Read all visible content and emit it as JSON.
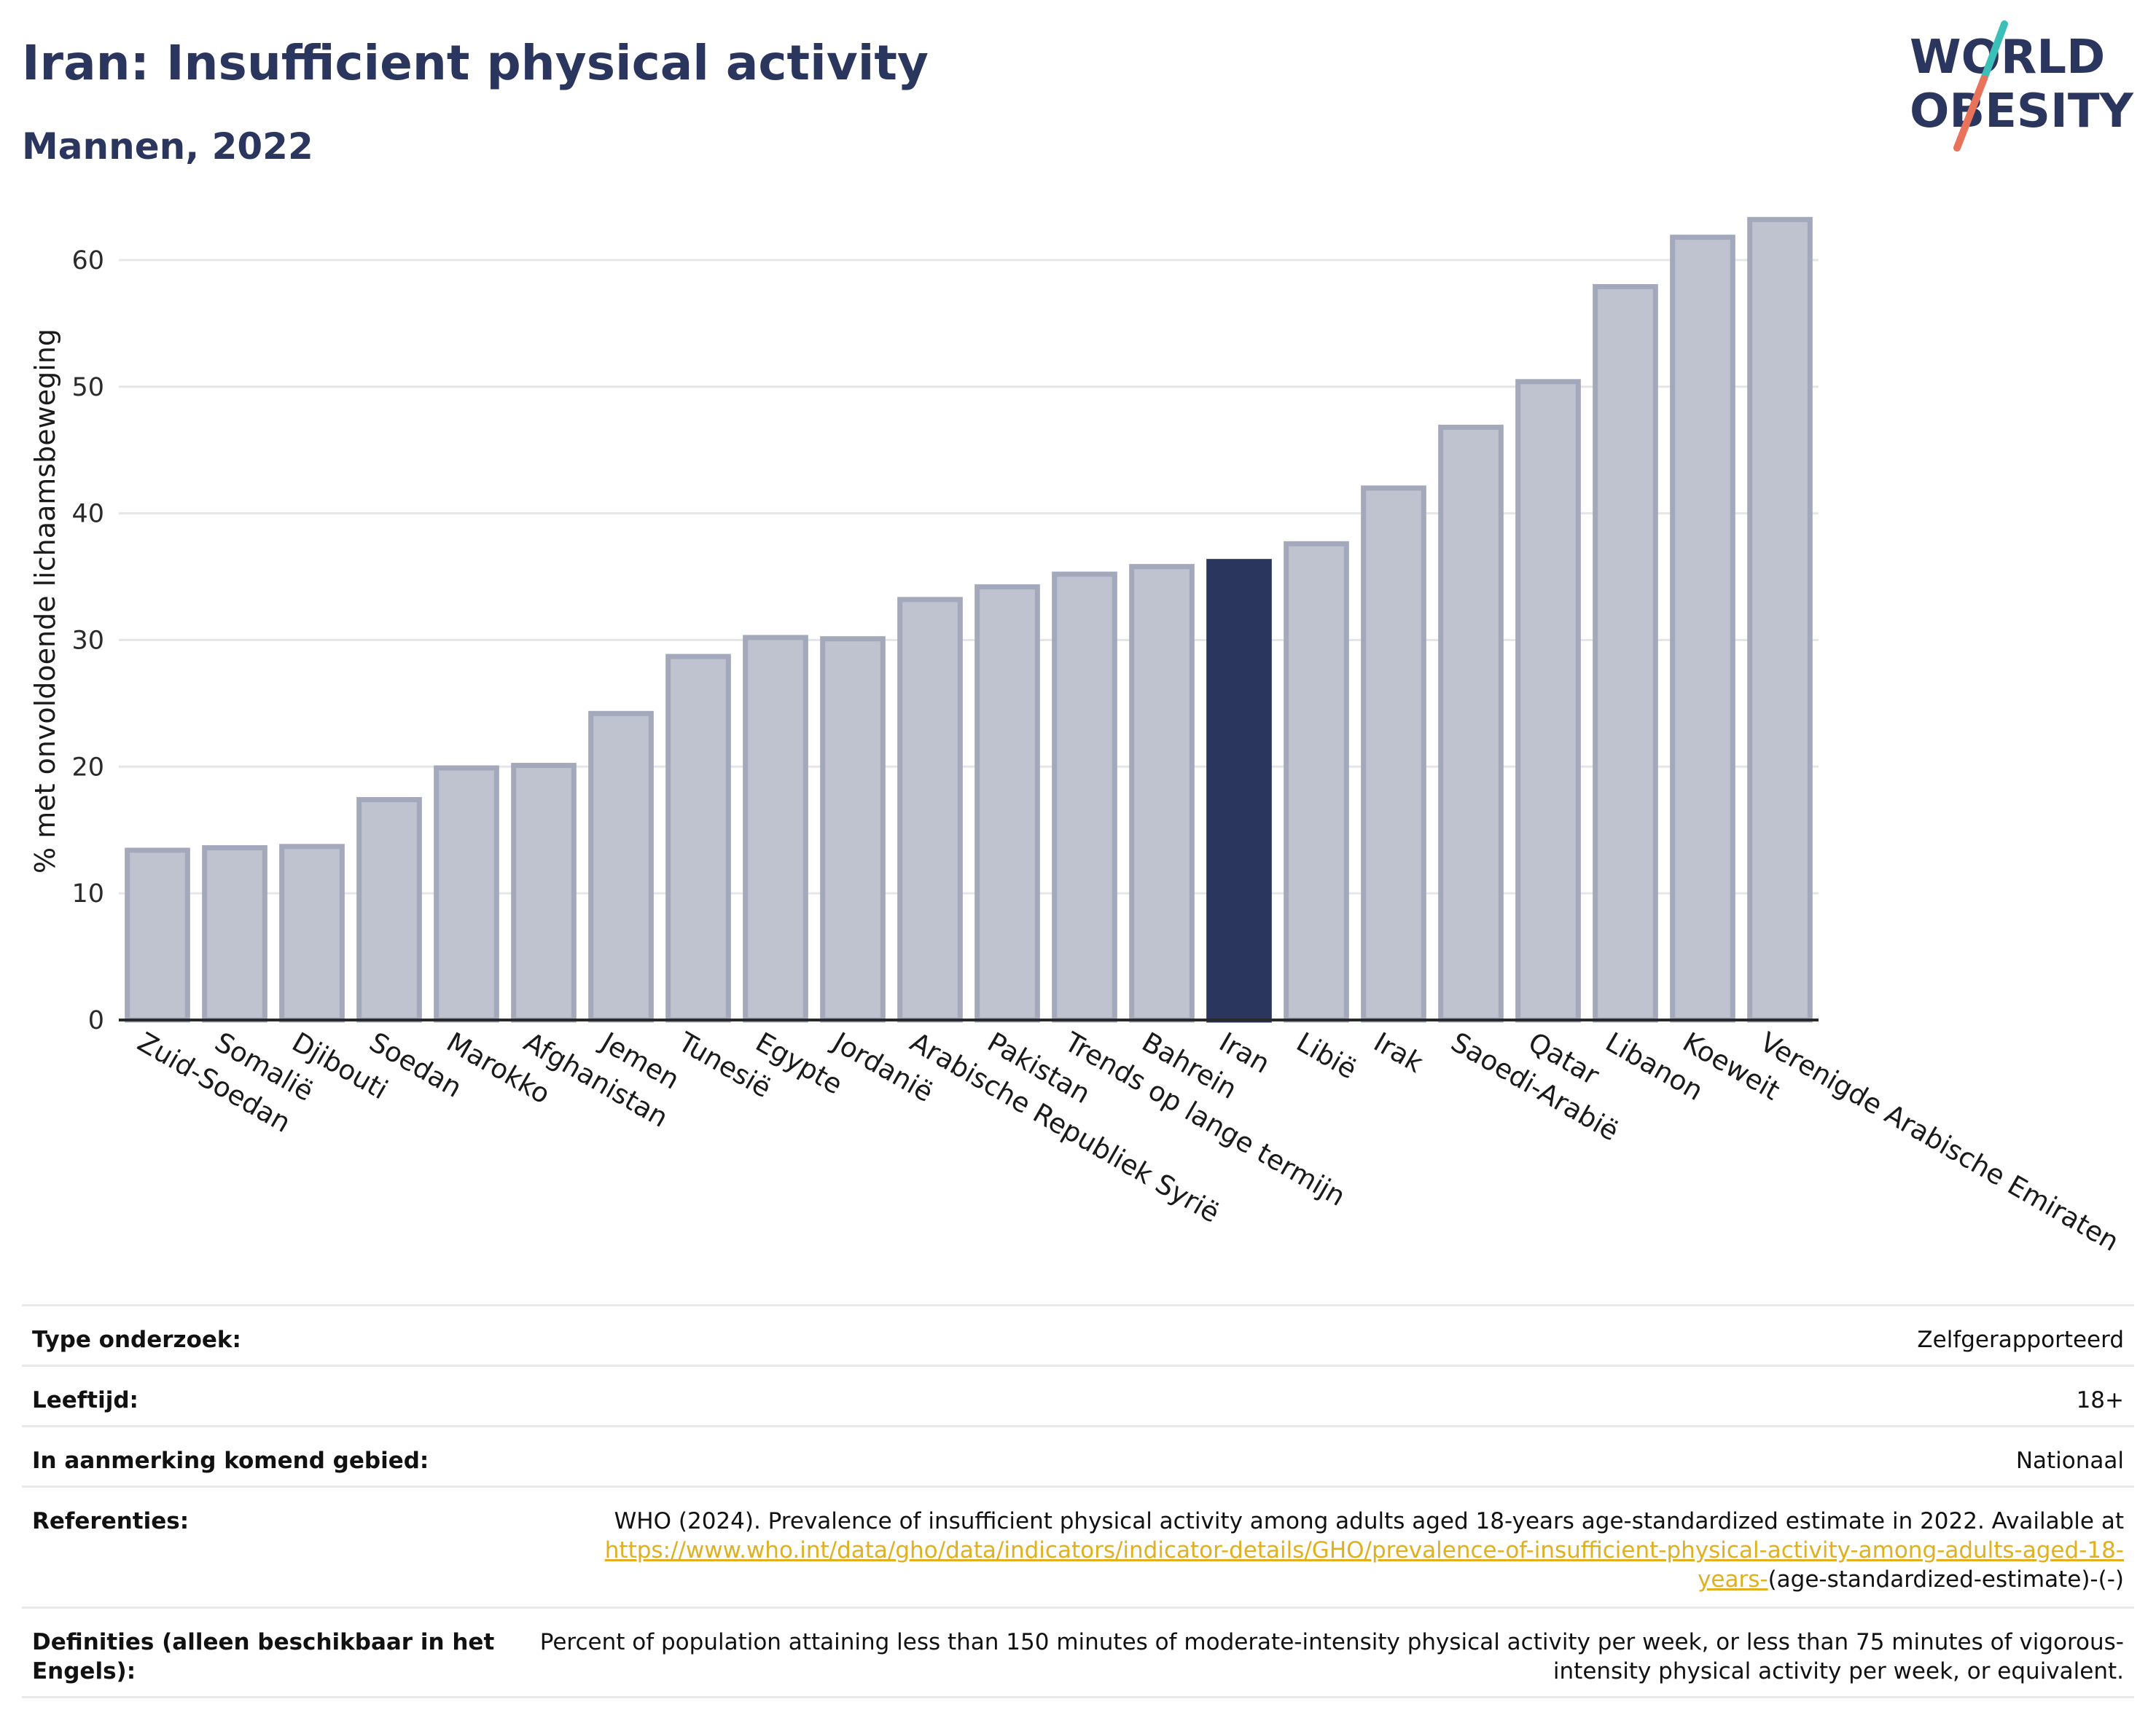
{
  "header": {
    "title": "Iran: Insufficient physical activity",
    "subtitle": "Mannen, 2022"
  },
  "logo": {
    "line1": "WORLD",
    "line2": "OBESITY",
    "colors": {
      "text": "#2b365e",
      "slash_top": "#3bbfb8",
      "slash_bottom": "#e8735a"
    }
  },
  "chart_data": {
    "type": "bar",
    "ylabel": "% met onvoldoende lichaamsbeweging",
    "xlabel": "",
    "ylim": [
      0,
      65
    ],
    "yticks": [
      0,
      10,
      20,
      30,
      40,
      50,
      60
    ],
    "grid": true,
    "highlight": "Iran",
    "colors": {
      "bar": "#bfc2cf",
      "bar_edge": "#a3a8bb",
      "highlight": "#2b365e"
    },
    "categories": [
      "Zuid-Soedan",
      "Somalië",
      "Djibouti",
      "Soedan",
      "Marokko",
      "Afghanistan",
      "Jemen",
      "Tunesië",
      "Egypte",
      "Jordanië",
      "Arabische Republiek Syrië",
      "Pakistan",
      "Trends op lange termijn",
      "Bahrein",
      "Iran",
      "Libië",
      "Irak",
      "Saoedi-Arabië",
      "Qatar",
      "Libanon",
      "Koeweit",
      "Verenigde Arabische Emiraten"
    ],
    "values": [
      13.4,
      13.6,
      13.7,
      17.4,
      19.9,
      20.1,
      24.2,
      28.7,
      30.2,
      30.1,
      33.2,
      34.2,
      35.2,
      35.8,
      36.2,
      37.6,
      42.0,
      46.8,
      50.4,
      57.9,
      61.8,
      63.2
    ]
  },
  "info": {
    "rows": [
      {
        "label": "Type onderzoek:",
        "value": "Zelfgerapporteerd"
      },
      {
        "label": "Leeftijd:",
        "value": "18+"
      },
      {
        "label": "In aanmerking komend gebied:",
        "value": "Nationaal"
      },
      {
        "label": "Referenties:",
        "value_prefix": "WHO (2024). Prevalence of insufficient physical activity among adults aged 18-years age-standardized estimate in 2022. Available at ",
        "link": "https://www.who.int/data/gho/data/indicators/indicator-details/GHO/prevalence-of-insufficient-physical-activity-among-adults-aged-18-years-",
        "value_suffix": "(age-standardized-estimate)-(-)"
      },
      {
        "label": "Definities (alleen beschikbaar in het Engels):",
        "value": "Percent of population attaining less than 150 minutes of moderate-intensity physical activity per week, or less than 75 minutes of vigorous-intensity physical activity per week, or equivalent."
      }
    ]
  }
}
